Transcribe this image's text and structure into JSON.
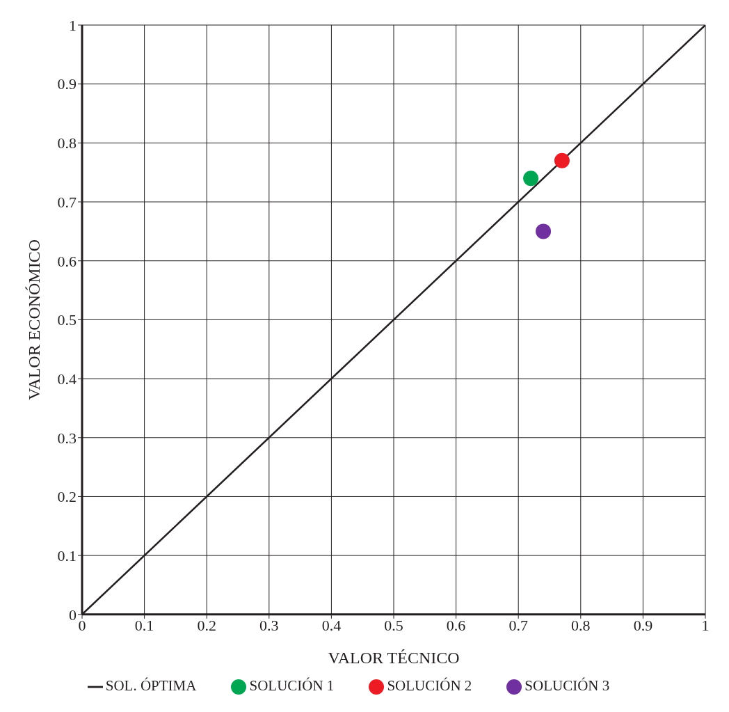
{
  "chart_data": {
    "type": "scatter",
    "xlabel": "VALOR TÉCNICO",
    "ylabel": "VALOR ECONÓMICO",
    "xlim": [
      0,
      1
    ],
    "ylim": [
      0,
      1
    ],
    "xticks": [
      0,
      0.1,
      0.2,
      0.3,
      0.4,
      0.5,
      0.6,
      0.7,
      0.8,
      0.9,
      1
    ],
    "yticks": [
      0,
      0.1,
      0.2,
      0.3,
      0.4,
      0.5,
      0.6,
      0.7,
      0.8,
      0.9,
      1
    ],
    "grid": true,
    "legend": "bottom",
    "marker": "circle",
    "series": [
      {
        "name": "SOL. ÓPTIMA",
        "type": "line",
        "marker": "none",
        "color": "#231f20",
        "x": [
          0,
          1
        ],
        "values": [
          0,
          1
        ]
      },
      {
        "name": "SOLUCIÓN 1",
        "color": "#00a651",
        "x": [
          0.72
        ],
        "values": [
          0.74
        ]
      },
      {
        "name": "SOLUCIÓN 2",
        "color": "#ed1c24",
        "x": [
          0.77
        ],
        "values": [
          0.77
        ]
      },
      {
        "name": "SOLUCIÓN 3",
        "color": "#7030a0",
        "x": [
          0.74
        ],
        "values": [
          0.65
        ]
      }
    ]
  }
}
